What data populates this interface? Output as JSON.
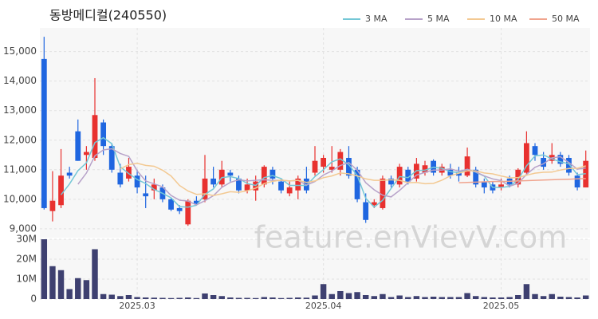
{
  "chart_data": [
    {
      "type": "candlestick",
      "title": "동방메디컬(240550)",
      "watermark": "feature.enVievV.com",
      "up_color": "#e8312f",
      "down_color": "#1f66e0",
      "grid": true,
      "legend": "top-right",
      "ylim": [
        8700,
        15800
      ],
      "yticks": [
        {
          "value": 9000,
          "label": "9,000"
        },
        {
          "value": 10000,
          "label": "10,000"
        },
        {
          "value": 11000,
          "label": "11,000"
        },
        {
          "value": 12000,
          "label": "12,000"
        },
        {
          "value": 13000,
          "label": "13,000"
        },
        {
          "value": 14000,
          "label": "14,000"
        },
        {
          "value": 15000,
          "label": "15,000"
        }
      ],
      "open": [
        14750,
        9600,
        9800,
        10900,
        12300,
        11500,
        11400,
        12600,
        11800,
        10900,
        10700,
        10800,
        10200,
        10300,
        10400,
        10000,
        9700,
        9150,
        9950,
        10000,
        10700,
        10500,
        10900,
        10700,
        10300,
        10300,
        10500,
        11000,
        10600,
        10200,
        10300,
        10700,
        10900,
        11100,
        11000,
        11000,
        11400,
        11000,
        9900,
        9800,
        9700,
        10700,
        10500,
        11000,
        10700,
        10900,
        11300,
        10900,
        11000,
        10900,
        10800,
        11000,
        10600,
        10500,
        10400,
        10700,
        10500,
        10900,
        11800,
        11400,
        11300,
        11500,
        11400,
        10800,
        10400
      ],
      "high": [
        15500,
        10950,
        11700,
        11100,
        12700,
        11800,
        14100,
        12700,
        11900,
        11200,
        11400,
        11000,
        10800,
        10700,
        10500,
        10050,
        9800,
        10000,
        10100,
        11500,
        11100,
        11300,
        11000,
        10800,
        10700,
        10800,
        11150,
        11100,
        10700,
        10600,
        10800,
        11100,
        11800,
        11500,
        11800,
        11700,
        11800,
        11100,
        10200,
        10000,
        10800,
        10800,
        11200,
        11100,
        11400,
        11300,
        11350,
        11200,
        11200,
        11100,
        11750,
        11100,
        10700,
        10600,
        10700,
        10800,
        11050,
        12300,
        11900,
        11600,
        11900,
        11600,
        11500,
        10900,
        11650
      ],
      "low": [
        9650,
        9250,
        9700,
        10700,
        11300,
        11000,
        11300,
        11500,
        10900,
        10400,
        10600,
        10200,
        9700,
        10000,
        9900,
        9600,
        9500,
        9100,
        9800,
        9900,
        10400,
        10400,
        10600,
        10200,
        10200,
        9950,
        10400,
        10500,
        10200,
        10100,
        10000,
        10200,
        10800,
        10900,
        10900,
        10800,
        10700,
        9900,
        9200,
        9700,
        9650,
        10400,
        10400,
        10500,
        10600,
        10800,
        10800,
        10800,
        10700,
        10600,
        10750,
        10400,
        10200,
        10200,
        10300,
        10400,
        10400,
        10800,
        11300,
        11000,
        11200,
        11100,
        10800,
        10300,
        10400
      ],
      "close": [
        9700,
        9950,
        10800,
        10800,
        11300,
        11600,
        12850,
        11800,
        11000,
        10500,
        11100,
        10400,
        10100,
        10500,
        10000,
        9650,
        9600,
        9950,
        9850,
        10700,
        10500,
        11000,
        10800,
        10300,
        10500,
        10600,
        11100,
        10700,
        10300,
        10400,
        10700,
        10300,
        11300,
        11400,
        11100,
        11600,
        10800,
        10000,
        9300,
        9900,
        10700,
        10500,
        11100,
        10600,
        11200,
        11150,
        10900,
        11100,
        10800,
        10800,
        11450,
        10500,
        10400,
        10300,
        10500,
        10500,
        11000,
        11900,
        11500,
        11100,
        11500,
        11200,
        10900,
        10400,
        11300
      ],
      "series": [
        {
          "name": "3 MA",
          "color": "#74c7d6",
          "values": [
            null,
            null,
            10150,
            10517,
            10967,
            11233,
            11917,
            12083,
            11883,
            11100,
            10867,
            10667,
            10533,
            10333,
            10200,
            10050,
            9750,
            9733,
            9800,
            10167,
            10350,
            10733,
            10767,
            10700,
            10533,
            10467,
            10733,
            10800,
            10700,
            10467,
            10467,
            10467,
            10767,
            11000,
            11267,
            11367,
            11167,
            10800,
            10033,
            9733,
            9967,
            10367,
            10767,
            10733,
            10967,
            10983,
            11083,
            11050,
            10933,
            10900,
            11017,
            10917,
            10783,
            10400,
            10400,
            10433,
            10667,
            11133,
            11467,
            11500,
            11367,
            11267,
            11200,
            10833,
            10867
          ]
        },
        {
          "name": "5 MA",
          "color": "#b7a2c9",
          "values": [
            null,
            null,
            null,
            null,
            10510,
            10890,
            11470,
            11670,
            11710,
            11550,
            11450,
            10960,
            10620,
            10520,
            10420,
            10130,
            9970,
            9940,
            9810,
            9950,
            10120,
            10400,
            10570,
            10660,
            10620,
            10640,
            10660,
            10640,
            10640,
            10620,
            10640,
            10480,
            10600,
            10820,
            10960,
            11140,
            11240,
            10980,
            10560,
            10320,
            10140,
            10080,
            10300,
            10560,
            10820,
            10910,
            10990,
            10990,
            11030,
            10950,
            11010,
            10930,
            10790,
            10690,
            10630,
            10440,
            10540,
            10840,
            11080,
            11200,
            11400,
            11440,
            11240,
            11020,
            11060
          ]
        },
        {
          "name": "10 MA",
          "color": "#f3c992",
          "values": [
            null,
            null,
            null,
            null,
            null,
            null,
            null,
            null,
            null,
            11030,
            11170,
            11215,
            11145,
            11115,
            10985,
            10790,
            10465,
            10280,
            10165,
            10185,
            10125,
            10185,
            10255,
            10235,
            10285,
            10380,
            10530,
            10605,
            10650,
            10620,
            10640,
            10570,
            10620,
            10730,
            10790,
            10890,
            10860,
            10790,
            10690,
            10640,
            10640,
            10660,
            10640,
            10560,
            10570,
            10525,
            10535,
            10645,
            10795,
            10885,
            10960,
            10960,
            10890,
            10860,
            10790,
            10725,
            10735,
            10815,
            10885,
            10915,
            10920,
            10990,
            11040,
            11050,
            11130
          ]
        },
        {
          "name": "50 MA",
          "color": "#f0a48e",
          "values": [
            null,
            null,
            null,
            null,
            null,
            null,
            null,
            null,
            null,
            null,
            null,
            null,
            null,
            null,
            null,
            null,
            null,
            null,
            null,
            null,
            null,
            null,
            null,
            null,
            null,
            null,
            null,
            null,
            null,
            null,
            null,
            null,
            null,
            null,
            null,
            null,
            null,
            null,
            null,
            null,
            null,
            null,
            null,
            null,
            null,
            null,
            null,
            null,
            null,
            10560,
            10570,
            10580,
            10590,
            10600,
            10600,
            10610,
            10620,
            10630,
            10640,
            10650,
            10660,
            10670,
            10680,
            10690,
            10700
          ]
        }
      ]
    },
    {
      "type": "bar",
      "color": "#3e4070",
      "grid": true,
      "ylim": [
        0,
        30000000
      ],
      "yticks": [
        0,
        {
          "value": 10000000,
          "label": "10M"
        },
        {
          "value": 20000000,
          "label": "20M"
        },
        {
          "value": 30000000,
          "label": "30M"
        }
      ],
      "categories": [
        null,
        null,
        null,
        null,
        null,
        null,
        null,
        null,
        null,
        null,
        null,
        "2025.03",
        null,
        null,
        null,
        null,
        null,
        null,
        null,
        null,
        null,
        null,
        null,
        null,
        null,
        null,
        null,
        null,
        null,
        null,
        null,
        null,
        null,
        "2025.04",
        null,
        null,
        null,
        null,
        null,
        null,
        null,
        null,
        null,
        null,
        null,
        null,
        null,
        null,
        null,
        null,
        null,
        null,
        null,
        null,
        "2025.05",
        null,
        null,
        null,
        null,
        null,
        null,
        null,
        null,
        null,
        null
      ],
      "values": [
        30000000,
        16500000,
        14500000,
        5000000,
        10500000,
        9500000,
        25000000,
        2500000,
        2200000,
        1500000,
        2000000,
        1000000,
        800000,
        700000,
        600000,
        500000,
        600000,
        800000,
        500000,
        2800000,
        2000000,
        1500000,
        800000,
        600000,
        600000,
        500000,
        1000000,
        800000,
        500000,
        600000,
        800000,
        700000,
        1800000,
        7500000,
        2500000,
        4000000,
        3000000,
        3500000,
        2000000,
        1500000,
        2500000,
        1000000,
        1800000,
        1000000,
        1500000,
        1000000,
        1200000,
        1000000,
        1000000,
        1000000,
        3000000,
        1500000,
        1000000,
        800000,
        800000,
        1000000,
        2000000,
        7500000,
        2500000,
        1500000,
        2500000,
        1200000,
        1000000,
        800000,
        1800000
      ]
    }
  ]
}
